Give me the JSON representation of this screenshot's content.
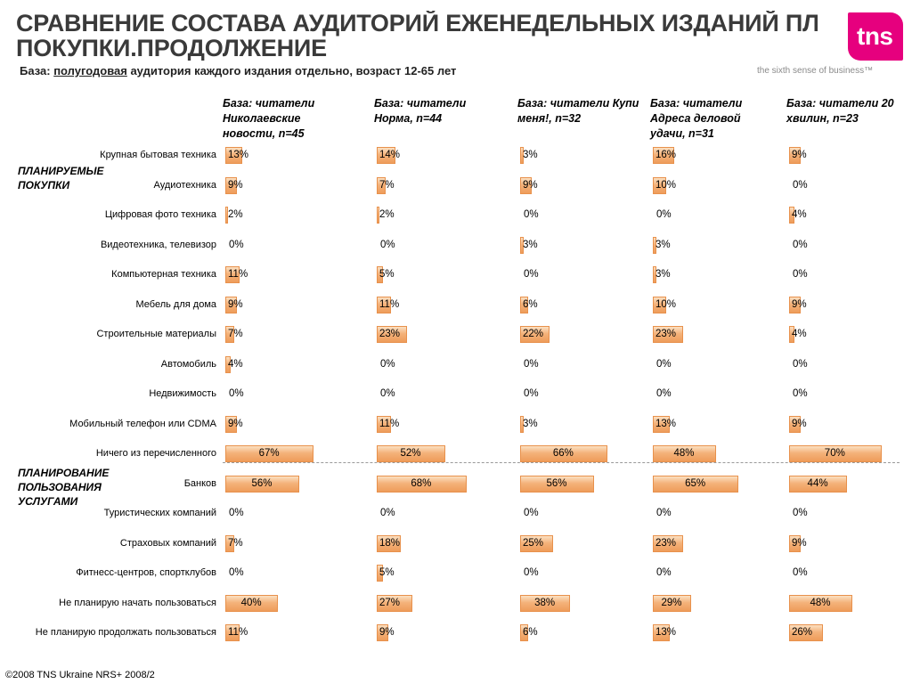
{
  "header": {
    "title_line1": "СРАВНЕНИЕ СОСТАВА АУДИТОРИЙ ЕЖЕНЕДЕЛЬНЫХ ИЗДАНИЙ ПЛАН",
    "title_line2": "ПОКУПКИ.ПРОДОЛЖЕНИЕ",
    "base_prefix": "База: ",
    "base_underlined": "полугодовая",
    "base_rest": " аудитория каждого издания отдельно, возраст 12-65 лет",
    "logo_text": "tns",
    "tagline": "the sixth sense of business™"
  },
  "sections": {
    "planned_purchases": "ПЛАНИРУЕМЫЕ ПОКУПКИ",
    "planned_services": "ПЛАНИРОВАНИЕ ПОЛЬЗОВАНИЯ УСЛУГАМИ"
  },
  "footer": "©2008 TNS Ukraine  NRS+ 2008/2",
  "colors": {
    "bar": "#f4b27a",
    "bar_border": "#e8914c",
    "logo": "#e6007e"
  },
  "chart_data": {
    "type": "bar",
    "orientation": "horizontal",
    "unit": "%",
    "categories": [
      "Крупная бытовая техника",
      "Аудиотехника",
      "Цифровая фото техника",
      "Видеотехника, телевизор",
      "Компьютерная техника",
      "Мебель для дома",
      "Строительные материалы",
      "Автомобиль",
      "Недвижимость",
      "Мобильный телефон или CDMA",
      "Ничего из перечисленного",
      "Банков",
      "Туристических компаний",
      "Страховых компаний",
      "Фитнесс-центров, спортклубов",
      "Не планирую начать пользоваться",
      "Не планирую продолжать пользоваться"
    ],
    "series": [
      {
        "header": "База: читатели Николаевские новости, n=45",
        "values": [
          13,
          9,
          2,
          0,
          11,
          9,
          7,
          4,
          0,
          9,
          67,
          56,
          0,
          7,
          0,
          40,
          11
        ]
      },
      {
        "header": "База: читатели Норма, n=44",
        "values": [
          14,
          7,
          2,
          0,
          5,
          11,
          23,
          0,
          0,
          11,
          52,
          68,
          0,
          18,
          5,
          27,
          9
        ]
      },
      {
        "header": "База: читатели Купи меня!, n=32",
        "values": [
          3,
          9,
          0,
          3,
          0,
          6,
          22,
          0,
          0,
          3,
          66,
          56,
          0,
          25,
          0,
          38,
          6
        ]
      },
      {
        "header": "База: читатели Адреса деловой удачи, n=31",
        "values": [
          16,
          10,
          0,
          3,
          3,
          10,
          23,
          0,
          0,
          13,
          48,
          65,
          0,
          23,
          0,
          29,
          13
        ]
      },
      {
        "header": "База: читатели 20 хвилин, n=23",
        "values": [
          9,
          0,
          4,
          0,
          0,
          9,
          4,
          0,
          0,
          9,
          70,
          44,
          0,
          9,
          0,
          48,
          26
        ]
      }
    ]
  }
}
